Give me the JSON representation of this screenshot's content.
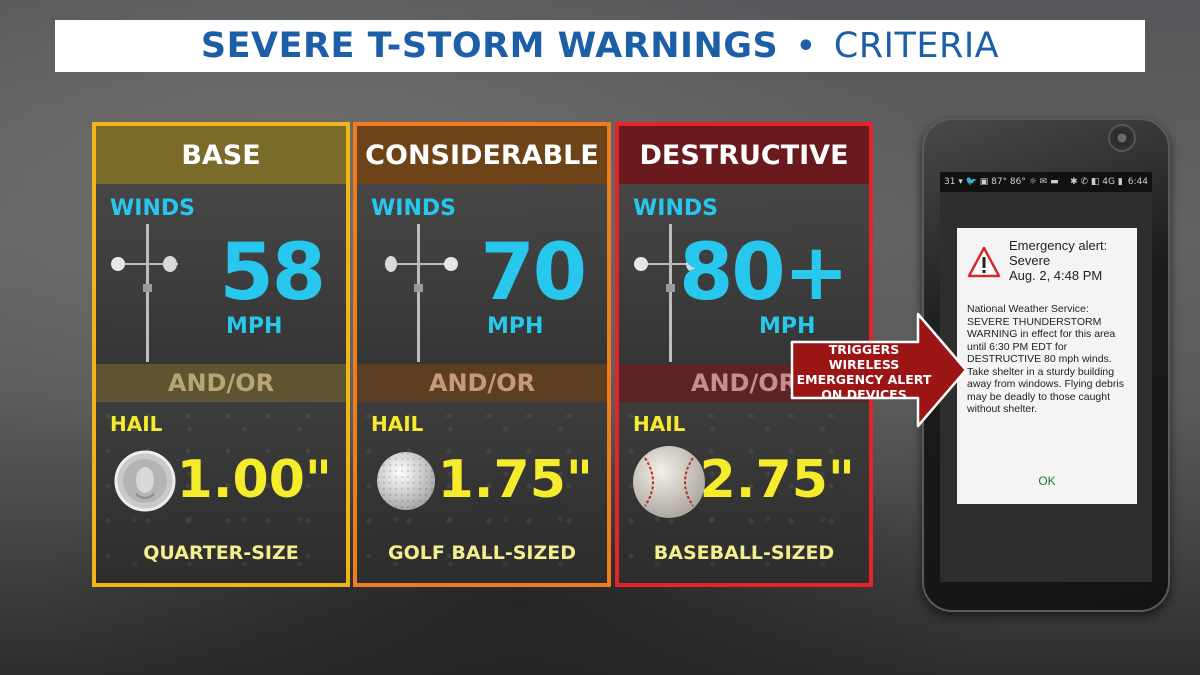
{
  "title": {
    "main": "SEVERE T-STORM WARNINGS",
    "separator": "•",
    "sub": "CRITERIA"
  },
  "panels": [
    {
      "tier": "BASE",
      "border_color": "#f1b51a",
      "winds_label": "WINDS",
      "wind_speed": "58",
      "wind_unit": "MPH",
      "andor": "AND/OR",
      "hail_label": "HAIL",
      "hail_size": "1.00\"",
      "hail_desc": "QUARTER-SIZE",
      "hail_icon": "quarter-coin-icon"
    },
    {
      "tier": "CONSIDERABLE",
      "border_color": "#f07d1d",
      "winds_label": "WINDS",
      "wind_speed": "70",
      "wind_unit": "MPH",
      "andor": "AND/OR",
      "hail_label": "HAIL",
      "hail_size": "1.75\"",
      "hail_desc": "GOLF BALL-SIZED",
      "hail_icon": "golf-ball-icon"
    },
    {
      "tier": "DESTRUCTIVE",
      "border_color": "#e3242b",
      "winds_label": "WINDS",
      "wind_speed": "80+",
      "wind_unit": "MPH",
      "andor": "AND/OR",
      "hail_label": "HAIL",
      "hail_size": "2.75\"",
      "hail_desc": "BASEBALL-SIZED",
      "hail_icon": "baseball-icon"
    }
  ],
  "callout": {
    "line1": "TRIGGERS WIRELESS",
    "line2": "EMERGENCY ALERT",
    "line3": "ON DEVICES",
    "color": "#9b1515"
  },
  "phone": {
    "status": {
      "left_icons": "31 ▾ 🐦 ▣ 87° 86° ☼ ✉ ▬",
      "right_icons": "✱ ✆ ◧ 4G ▮",
      "time": "6:44"
    },
    "alert": {
      "title_line1": "Emergency alert:",
      "title_line2": "Severe",
      "title_line3": "Aug. 2, 4:48 PM",
      "body": "National Weather Service: SEVERE THUNDERSTORM WARNING in effect for this area until 6:30 PM EDT for DESTRUCTIVE 80 mph winds.  Take shelter in a sturdy building away from windows.  Flying debris may be deadly to those caught without shelter.",
      "ok_label": "OK"
    }
  }
}
